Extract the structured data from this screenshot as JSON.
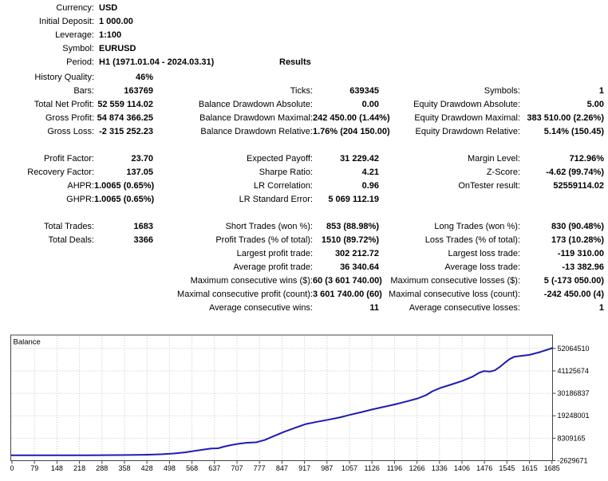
{
  "report": {
    "results_title": "Results",
    "info": [
      {
        "label": "Currency:",
        "value": "USD"
      },
      {
        "label": "Initial Deposit:",
        "value": "1 000.00"
      },
      {
        "label": "Leverage:",
        "value": "1:100"
      },
      {
        "label": "Symbol:",
        "value": "EURUSD"
      },
      {
        "label": "Period:",
        "value": "H1 (1971.01.04 - 2024.03.31)"
      }
    ],
    "stats": [
      [
        {
          "l": "History Quality:",
          "v": "46%"
        },
        null,
        null
      ],
      [
        {
          "l": "Bars:",
          "v": "163769"
        },
        {
          "l": "Ticks:",
          "v": "639345"
        },
        {
          "l": "Symbols:",
          "v": "1"
        }
      ],
      [
        {
          "l": "Total Net Profit:",
          "v": "52 559 114.02"
        },
        {
          "l": "Balance Drawdown Absolute:",
          "v": "0.00"
        },
        {
          "l": "Equity Drawdown Absolute:",
          "v": "5.00"
        }
      ],
      [
        {
          "l": "Gross Profit:",
          "v": "54 874 366.25"
        },
        {
          "l": "Balance Drawdown Maximal:",
          "v": "242 450.00 (1.44%)"
        },
        {
          "l": "Equity Drawdown Maximal:",
          "v": "383 510.00 (2.26%)"
        }
      ],
      [
        {
          "l": "Gross Loss:",
          "v": "-2 315 252.23"
        },
        {
          "l": "Balance Drawdown Relative:",
          "v": "1.76% (204 150.00)"
        },
        {
          "l": "Equity Drawdown Relative:",
          "v": "5.14% (150.45)"
        }
      ],
      null,
      [
        {
          "l": "Profit Factor:",
          "v": "23.70"
        },
        {
          "l": "Expected Payoff:",
          "v": "31 229.42"
        },
        {
          "l": "Margin Level:",
          "v": "712.96%"
        }
      ],
      [
        {
          "l": "Recovery Factor:",
          "v": "137.05"
        },
        {
          "l": "Sharpe Ratio:",
          "v": "4.21"
        },
        {
          "l": "Z-Score:",
          "v": "-4.62 (99.74%)"
        }
      ],
      [
        {
          "l": "AHPR:",
          "v": "1.0065 (0.65%)"
        },
        {
          "l": "LR Correlation:",
          "v": "0.96"
        },
        {
          "l": "OnTester result:",
          "v": "52559114.02"
        }
      ],
      [
        {
          "l": "GHPR:",
          "v": "1.0065 (0.65%)"
        },
        {
          "l": "LR Standard Error:",
          "v": "5 069 112.19"
        },
        null
      ],
      null,
      [
        {
          "l": "Total Trades:",
          "v": "1683"
        },
        {
          "l": "Short Trades (won %):",
          "v": "853 (88.98%)"
        },
        {
          "l": "Long Trades (won %):",
          "v": "830 (90.48%)"
        }
      ],
      [
        {
          "l": "Total Deals:",
          "v": "3366"
        },
        {
          "l": "Profit Trades (% of total):",
          "v": "1510 (89.72%)"
        },
        {
          "l": "Loss Trades (% of total):",
          "v": "173 (10.28%)"
        }
      ],
      [
        null,
        {
          "l": "Largest profit trade:",
          "v": "302 212.72"
        },
        {
          "l": "Largest loss trade:",
          "v": "-119 310.00"
        }
      ],
      [
        null,
        {
          "l": "Average profit trade:",
          "v": "36 340.64"
        },
        {
          "l": "Average loss trade:",
          "v": "-13 382.96"
        }
      ],
      [
        null,
        {
          "l": "Maximum consecutive wins ($):",
          "v": "60 (3 601 740.00)"
        },
        {
          "l": "Maximum consecutive losses ($):",
          "v": "5 (-173 050.00)"
        }
      ],
      [
        null,
        {
          "l": "Maximal consecutive profit (count):",
          "v": "3 601 740.00 (60)"
        },
        {
          "l": "Maximal consecutive loss (count):",
          "v": "-242 450.00 (4)"
        }
      ],
      [
        null,
        {
          "l": "Average consecutive wins:",
          "v": "11"
        },
        {
          "l": "Average consecutive losses:",
          "v": "1"
        }
      ]
    ]
  },
  "chart_data": {
    "type": "line",
    "title": "Balance",
    "legend_label": "Balance",
    "grid": "dotted",
    "line_color": "#1c1cb4",
    "grid_color": "#c6c6c6",
    "border_color": "#444444",
    "background": "#ffffff",
    "x_range": [
      0,
      1687
    ],
    "x_ticks": [
      0,
      79,
      148,
      218,
      288,
      358,
      428,
      498,
      568,
      637,
      707,
      777,
      847,
      917,
      987,
      1057,
      1126,
      1196,
      1266,
      1336,
      1406,
      1476,
      1545,
      1615,
      1685
    ],
    "y_ticks": [
      52064510,
      41125674,
      30186837,
      19248001,
      8309165,
      -2629671
    ],
    "series": [
      {
        "name": "Balance",
        "points": [
          [
            0,
            1000
          ],
          [
            120,
            5000
          ],
          [
            240,
            20000
          ],
          [
            330,
            80000
          ],
          [
            390,
            160000
          ],
          [
            430,
            300000
          ],
          [
            470,
            520000
          ],
          [
            505,
            850000
          ],
          [
            540,
            1400000
          ],
          [
            570,
            2100000
          ],
          [
            600,
            2800000
          ],
          [
            622,
            3300000
          ],
          [
            643,
            3400000
          ],
          [
            662,
            4200000
          ],
          [
            685,
            5000000
          ],
          [
            710,
            5700000
          ],
          [
            735,
            6100000
          ],
          [
            762,
            6300000
          ],
          [
            788,
            7400000
          ],
          [
            815,
            9200000
          ],
          [
            847,
            11300000
          ],
          [
            880,
            13200000
          ],
          [
            917,
            15200000
          ],
          [
            952,
            16300000
          ],
          [
            987,
            17300000
          ],
          [
            1022,
            18400000
          ],
          [
            1057,
            19800000
          ],
          [
            1092,
            21100000
          ],
          [
            1126,
            22400000
          ],
          [
            1161,
            23600000
          ],
          [
            1196,
            24800000
          ],
          [
            1231,
            26200000
          ],
          [
            1266,
            27700000
          ],
          [
            1292,
            29300000
          ],
          [
            1312,
            31200000
          ],
          [
            1336,
            32800000
          ],
          [
            1371,
            34500000
          ],
          [
            1406,
            36300000
          ],
          [
            1437,
            38300000
          ],
          [
            1458,
            40200000
          ],
          [
            1472,
            41000000
          ],
          [
            1492,
            40800000
          ],
          [
            1507,
            41400000
          ],
          [
            1522,
            43000000
          ],
          [
            1537,
            45000000
          ],
          [
            1552,
            46800000
          ],
          [
            1567,
            48000000
          ],
          [
            1592,
            48500000
          ],
          [
            1615,
            48900000
          ],
          [
            1650,
            50400000
          ],
          [
            1685,
            52200000
          ],
          [
            1687,
            52559114
          ]
        ]
      }
    ]
  }
}
